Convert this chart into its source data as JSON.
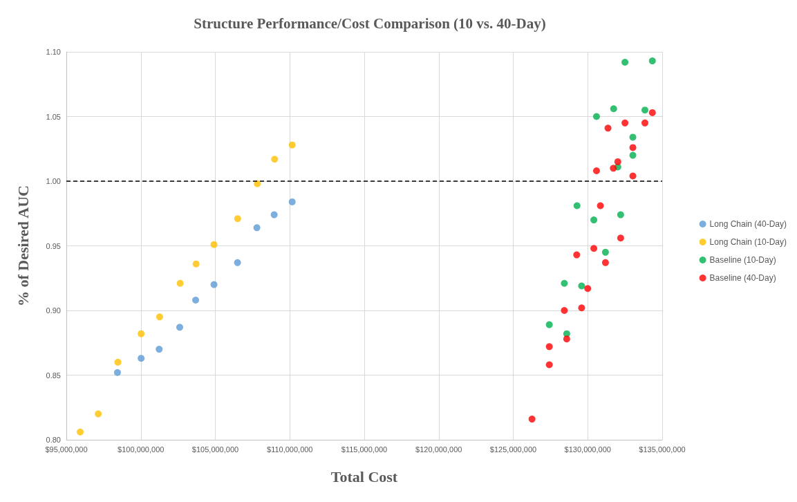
{
  "chart_data": {
    "type": "scatter",
    "title": "Structure Performance/Cost Comparison (10 vs. 40-Day)",
    "xlabel": "Total Cost",
    "ylabel": "% of Desired AUC",
    "xlim": [
      95000000,
      135000000
    ],
    "xticks": [
      {
        "value": 95000000,
        "label": "$95,000,000"
      },
      {
        "value": 100000000,
        "label": "$100,000,000"
      },
      {
        "value": 105000000,
        "label": "$105,000,000"
      },
      {
        "value": 110000000,
        "label": "$110,000,000"
      },
      {
        "value": 115000000,
        "label": "$115,000,000"
      },
      {
        "value": 120000000,
        "label": "$120,000,000"
      },
      {
        "value": 125000000,
        "label": "$125,000,000"
      },
      {
        "value": 130000000,
        "label": "$130,000,000"
      },
      {
        "value": 135000000,
        "label": "$135,000,000"
      }
    ],
    "ylim": [
      0.8,
      1.1
    ],
    "yticks": [
      {
        "value": 0.8,
        "label": "0.80"
      },
      {
        "value": 0.85,
        "label": "0.85"
      },
      {
        "value": 0.9,
        "label": "0.90"
      },
      {
        "value": 0.95,
        "label": "0.95"
      },
      {
        "value": 1.0,
        "label": "1.00"
      },
      {
        "value": 1.05,
        "label": "1.05"
      },
      {
        "value": 1.1,
        "label": "1.10"
      }
    ],
    "grid": true,
    "legend": "right",
    "marker": "circle",
    "ref_lines": [
      {
        "axis": "y",
        "value": 1.0,
        "color": "#000000",
        "line_style": "dashed"
      }
    ],
    "series": [
      {
        "name": "Long Chain (40-Day)",
        "color": "#5b9bd5",
        "x": [
          98430000,
          100020000,
          101230000,
          102610000,
          103680000,
          104910000,
          106490000,
          107790000,
          108950000,
          110160000
        ],
        "values": [
          0.852,
          0.863,
          0.87,
          0.887,
          0.908,
          0.92,
          0.937,
          0.964,
          0.974,
          0.984
        ]
      },
      {
        "name": "Long Chain (10-Day)",
        "color": "#ffc000",
        "x": [
          95930000,
          97140000,
          98460000,
          100020000,
          101260000,
          102640000,
          103710000,
          104910000,
          106500000,
          107820000,
          108980000,
          110160000
        ],
        "values": [
          0.806,
          0.82,
          0.86,
          0.882,
          0.895,
          0.921,
          0.936,
          0.951,
          0.971,
          0.998,
          1.017,
          1.028
        ]
      },
      {
        "name": "Baseline (10-Day)",
        "color": "#00b050",
        "x": [
          132500000,
          134340000,
          131740000,
          133840000,
          130590000,
          133030000,
          133030000,
          132020000,
          129280000,
          132210000,
          130410000,
          131190000,
          128430000,
          129590000,
          127420000,
          128590000
        ],
        "values": [
          1.092,
          1.093,
          1.056,
          1.055,
          1.05,
          1.034,
          1.02,
          1.011,
          0.981,
          0.974,
          0.97,
          0.945,
          0.921,
          0.919,
          0.889,
          0.882
        ]
      },
      {
        "name": "Baseline (40-Day)",
        "color": "#ff0000",
        "x": [
          134340000,
          131360000,
          132500000,
          133840000,
          133030000,
          132020000,
          131720000,
          130590000,
          133030000,
          130850000,
          132210000,
          130410000,
          131190000,
          129260000,
          130000000,
          128430000,
          129590000,
          127420000,
          128590000,
          127420000,
          126260000
        ],
        "values": [
          1.053,
          1.041,
          1.045,
          1.045,
          1.026,
          1.015,
          1.01,
          1.008,
          1.004,
          0.981,
          0.956,
          0.948,
          0.937,
          0.943,
          0.917,
          0.9,
          0.902,
          0.872,
          0.878,
          0.858,
          0.816
        ]
      }
    ]
  }
}
